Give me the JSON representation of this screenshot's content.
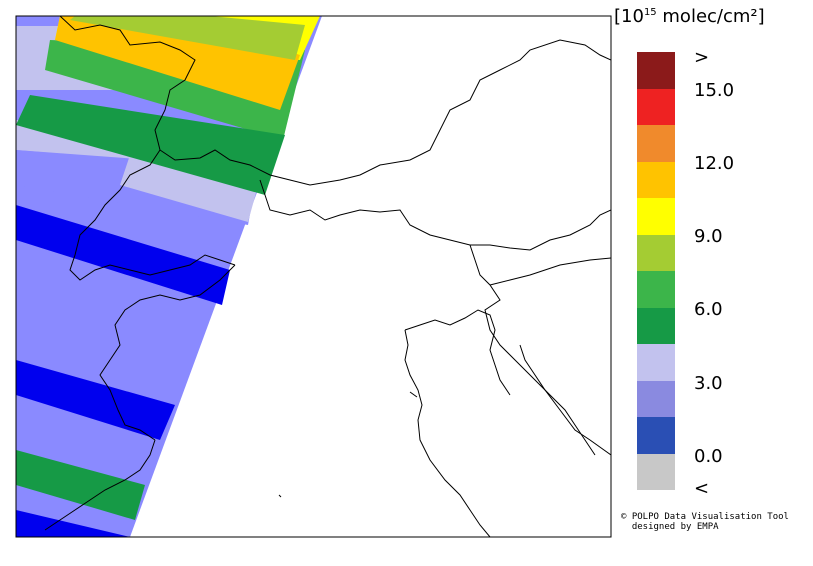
{
  "legend": {
    "title_prefix": "[10",
    "title_exponent": "15",
    "title_suffix": " molec/cm²]",
    "bins": [
      {
        "color": "#8b1a1a"
      },
      {
        "color": "#ee2222"
      },
      {
        "color": "#f08a2c"
      },
      {
        "color": "#ffc300"
      },
      {
        "color": "#ffff00"
      },
      {
        "color": "#a4cc33"
      },
      {
        "color": "#3cb54a"
      },
      {
        "color": "#169a46"
      },
      {
        "color": "#c2c2ee"
      },
      {
        "color": "#8a8ae0"
      },
      {
        "color": "#2a4fb4"
      },
      {
        "color": "#c8c8c8"
      }
    ],
    "tick_labels": [
      ">",
      "15.0",
      "12.0",
      "9.0",
      "6.0",
      "3.0",
      "0.0",
      "<"
    ]
  },
  "swath_bands": [
    {
      "value_bin": "9-10.5",
      "color": "#ffff00"
    },
    {
      "value_bin": "7.5-9",
      "color": "#a4cc33"
    },
    {
      "value_bin": "10.5-12",
      "color": "#ffc300"
    },
    {
      "value_bin": "3-4.5",
      "color": "#c2c2ee"
    },
    {
      "value_bin": "4.5-6",
      "color": "#3cb54a"
    },
    {
      "value_bin": "1.5-3",
      "color": "#8a8aff"
    },
    {
      "value_bin": "0-1.5",
      "color": "#0000ee"
    },
    {
      "value_bin": "4.5-6",
      "color": "#169a46"
    }
  ],
  "credit": {
    "line1": "© POLPO Data Visualisation Tool",
    "line2": "  designed by EMPA"
  }
}
